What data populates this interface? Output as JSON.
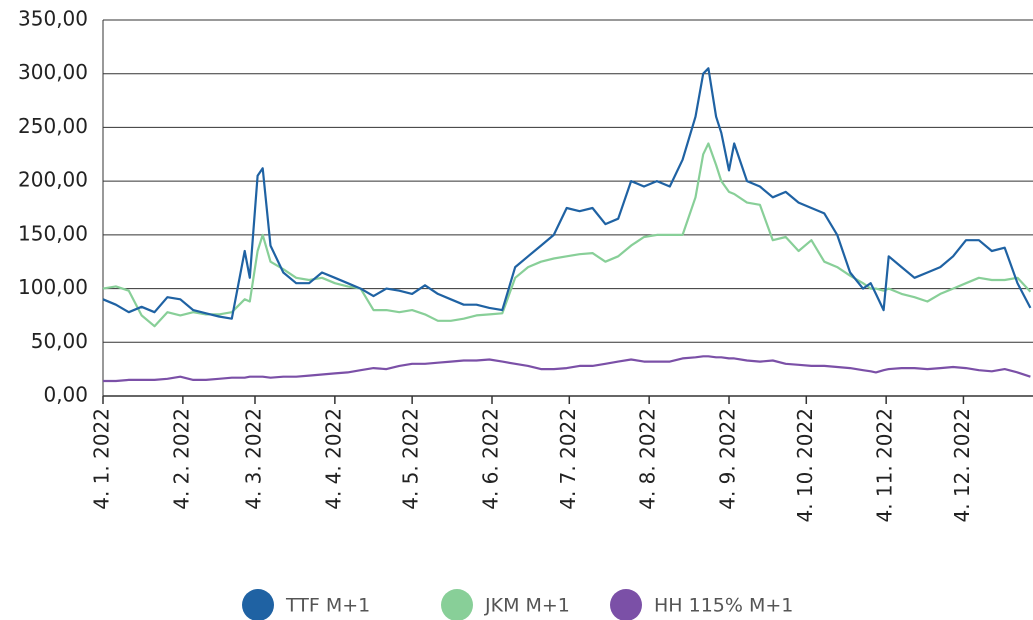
{
  "chart_data": {
    "type": "line",
    "x": [
      "2022-01-04",
      "2022-01-09",
      "2022-01-14",
      "2022-01-19",
      "2022-01-24",
      "2022-01-29",
      "2022-02-03",
      "2022-02-08",
      "2022-02-13",
      "2022-02-18",
      "2022-02-23",
      "2022-02-28",
      "2022-03-02",
      "2022-03-05",
      "2022-03-07",
      "2022-03-10",
      "2022-03-15",
      "2022-03-20",
      "2022-03-25",
      "2022-03-30",
      "2022-04-04",
      "2022-04-09",
      "2022-04-14",
      "2022-04-19",
      "2022-04-24",
      "2022-04-29",
      "2022-05-04",
      "2022-05-09",
      "2022-05-14",
      "2022-05-19",
      "2022-05-24",
      "2022-05-29",
      "2022-06-03",
      "2022-06-08",
      "2022-06-13",
      "2022-06-18",
      "2022-06-23",
      "2022-06-28",
      "2022-07-03",
      "2022-07-08",
      "2022-07-13",
      "2022-07-18",
      "2022-07-23",
      "2022-07-28",
      "2022-08-02",
      "2022-08-07",
      "2022-08-12",
      "2022-08-17",
      "2022-08-22",
      "2022-08-25",
      "2022-08-27",
      "2022-08-30",
      "2022-09-01",
      "2022-09-04",
      "2022-09-06",
      "2022-09-11",
      "2022-09-16",
      "2022-09-21",
      "2022-09-26",
      "2022-10-01",
      "2022-10-06",
      "2022-10-11",
      "2022-10-16",
      "2022-10-21",
      "2022-10-26",
      "2022-10-29",
      "2022-10-31",
      "2022-11-03",
      "2022-11-05",
      "2022-11-10",
      "2022-11-15",
      "2022-11-20",
      "2022-11-25",
      "2022-11-30",
      "2022-12-05",
      "2022-12-10",
      "2022-12-15",
      "2022-12-20",
      "2022-12-25",
      "2022-12-30"
    ],
    "series": [
      {
        "name": "TTF M+1",
        "color": "#1f62a3",
        "values": [
          90,
          85,
          78,
          83,
          78,
          92,
          90,
          80,
          77,
          74,
          72,
          135,
          110,
          205,
          212,
          140,
          115,
          105,
          105,
          115,
          110,
          105,
          100,
          93,
          100,
          98,
          95,
          103,
          95,
          90,
          85,
          85,
          82,
          80,
          120,
          130,
          140,
          150,
          175,
          172,
          175,
          160,
          165,
          200,
          195,
          200,
          195,
          220,
          260,
          300,
          305,
          260,
          245,
          210,
          235,
          200,
          195,
          185,
          190,
          180,
          175,
          170,
          150,
          115,
          100,
          105,
          95,
          80,
          130,
          120,
          110,
          115,
          120,
          130,
          145,
          145,
          135,
          138,
          105,
          82
        ]
      },
      {
        "name": "JKM M+1",
        "color": "#88cf98",
        "values": [
          100,
          102,
          98,
          75,
          65,
          78,
          75,
          78,
          76,
          76,
          78,
          90,
          88,
          135,
          150,
          125,
          118,
          110,
          108,
          110,
          105,
          102,
          100,
          80,
          80,
          78,
          80,
          76,
          70,
          70,
          72,
          75,
          76,
          77,
          110,
          120,
          125,
          128,
          130,
          132,
          133,
          125,
          130,
          140,
          148,
          150,
          150,
          150,
          185,
          225,
          235,
          215,
          200,
          190,
          188,
          180,
          178,
          145,
          148,
          135,
          145,
          125,
          120,
          112,
          105,
          100,
          100,
          98,
          100,
          95,
          92,
          88,
          95,
          100,
          105,
          110,
          108,
          108,
          110,
          97
        ]
      },
      {
        "name": "HH 115% M+1",
        "color": "#7b50a7",
        "values": [
          14,
          14,
          15,
          15,
          15,
          16,
          18,
          15,
          15,
          16,
          17,
          17,
          18,
          18,
          18,
          17,
          18,
          18,
          19,
          20,
          21,
          22,
          24,
          26,
          25,
          28,
          30,
          30,
          31,
          32,
          33,
          33,
          34,
          32,
          30,
          28,
          25,
          25,
          26,
          28,
          28,
          30,
          32,
          34,
          32,
          32,
          32,
          35,
          36,
          37,
          37,
          36,
          36,
          35,
          35,
          33,
          32,
          33,
          30,
          29,
          28,
          28,
          27,
          26,
          24,
          23,
          22,
          24,
          25,
          26,
          26,
          25,
          26,
          27,
          26,
          24,
          23,
          25,
          22,
          18
        ]
      }
    ],
    "xlim": [
      "2022-01-04",
      "2022-12-31"
    ],
    "xticks": [
      {
        "value": "2022-01-04",
        "label": "4. 1. 2022"
      },
      {
        "value": "2022-02-04",
        "label": "4. 2. 2022"
      },
      {
        "value": "2022-03-04",
        "label": "4. 3. 2022"
      },
      {
        "value": "2022-04-04",
        "label": "4. 4. 2022"
      },
      {
        "value": "2022-05-04",
        "label": "4. 5. 2022"
      },
      {
        "value": "2022-06-04",
        "label": "4. 6. 2022"
      },
      {
        "value": "2022-07-04",
        "label": "4. 7. 2022"
      },
      {
        "value": "2022-08-04",
        "label": "4. 8. 2022"
      },
      {
        "value": "2022-09-04",
        "label": "4. 9. 2022"
      },
      {
        "value": "2022-10-04",
        "label": "4. 10. 2022"
      },
      {
        "value": "2022-11-04",
        "label": "4. 11. 2022"
      },
      {
        "value": "2022-12-04",
        "label": "4. 12. 2022"
      }
    ],
    "ylim": [
      0,
      350
    ],
    "yticks": [
      {
        "value": 0,
        "label": "0,00"
      },
      {
        "value": 50,
        "label": "50,00"
      },
      {
        "value": 100,
        "label": "100,00"
      },
      {
        "value": 150,
        "label": "150,00"
      },
      {
        "value": 200,
        "label": "200,00"
      },
      {
        "value": 250,
        "label": "250,00"
      },
      {
        "value": 300,
        "label": "300,00"
      },
      {
        "value": 350,
        "label": "350,00"
      }
    ],
    "grid": true
  }
}
